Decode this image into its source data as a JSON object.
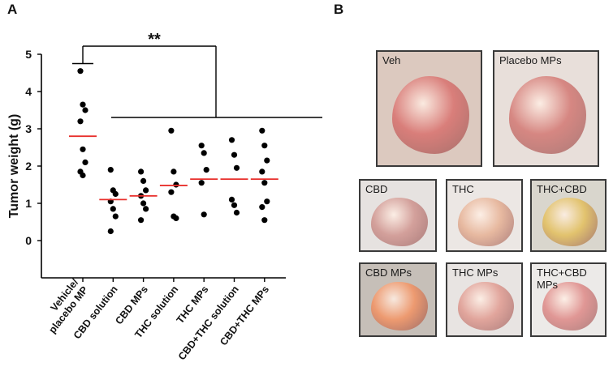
{
  "panels": {
    "a": "A",
    "b": "B"
  },
  "significance": "**",
  "chart_data": {
    "type": "scatter",
    "ylabel": "Tumor weight (g)",
    "ylim": [
      -1,
      5
    ],
    "yticks": [
      0,
      1,
      2,
      3,
      4,
      5
    ],
    "categories": [
      "Vehicle/\nplacebo MP",
      "CBD solution",
      "CBD MPs",
      "THC solution",
      "THC MPs",
      "CBD+THC solution",
      "CBD+THC MPs"
    ],
    "points": [
      [
        4.55,
        3.65,
        3.5,
        3.2,
        2.45,
        2.1,
        1.85,
        1.75
      ],
      [
        1.9,
        1.35,
        1.25,
        1.05,
        0.85,
        0.65,
        0.25
      ],
      [
        1.85,
        1.6,
        1.35,
        1.2,
        1.0,
        0.85,
        0.55
      ],
      [
        2.95,
        1.85,
        1.5,
        1.3,
        0.65,
        0.6
      ],
      [
        2.55,
        2.35,
        1.9,
        1.55,
        0.7
      ],
      [
        2.7,
        2.3,
        1.95,
        1.1,
        0.95,
        0.75
      ],
      [
        2.95,
        2.55,
        2.15,
        1.85,
        1.55,
        1.05,
        0.9,
        0.55
      ]
    ],
    "means": [
      2.8,
      1.1,
      1.2,
      1.48,
      1.65,
      1.65,
      1.65
    ],
    "mean_color": "#e8302d",
    "point_color": "#000000"
  },
  "tumors": [
    {
      "label": "Veh",
      "bg": "#dcc9bf",
      "tissue": "#d97e7a"
    },
    {
      "label": "Placebo MPs",
      "bg": "#e8dfda",
      "tissue": "#d68782"
    },
    {
      "label": "CBD",
      "bg": "#e6e2e0",
      "tissue": "#d3a09b"
    },
    {
      "label": "THC",
      "bg": "#ece7e4",
      "tissue": "#e7b9a0"
    },
    {
      "label": "THC+CBD",
      "bg": "#d9d6cd",
      "tissue": "#e2c36e"
    },
    {
      "label": "CBD MPs",
      "bg": "#c6bfb8",
      "tissue": "#ed9a70"
    },
    {
      "label": "THC MPs",
      "bg": "#e8e4e2",
      "tissue": "#e1a59c"
    },
    {
      "label": "THC+CBD\n  MPs",
      "bg": "#eceae8",
      "tissue": "#e09795"
    }
  ]
}
